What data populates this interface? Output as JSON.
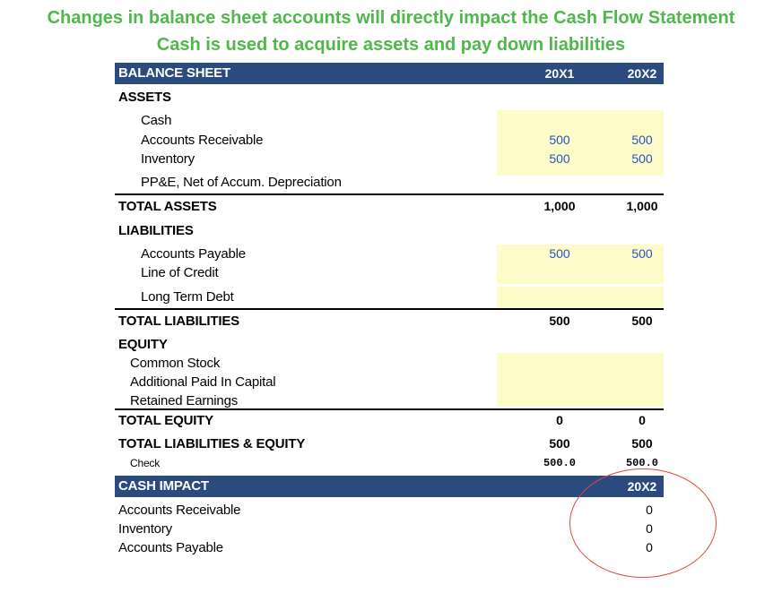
{
  "heading": {
    "line1": "Changes in balance sheet accounts will directly impact the Cash Flow Statement",
    "line2": "Cash is used to acquire assets and pay down liabilities"
  },
  "balance_sheet": {
    "title": "BALANCE SHEET",
    "col1": "20X1",
    "col2": "20X2",
    "assets_header": "ASSETS",
    "cash": {
      "label": "Cash",
      "v1": "",
      "v2": ""
    },
    "ar": {
      "label": "Accounts Receivable",
      "v1": "500",
      "v2": "500"
    },
    "inventory": {
      "label": "Inventory",
      "v1": "500",
      "v2": "500"
    },
    "ppe": {
      "label": "PP&E, Net of Accum. Depreciation",
      "v1": "",
      "v2": ""
    },
    "total_assets": {
      "label": "TOTAL ASSETS",
      "v1": "1,000",
      "v2": "1,000"
    },
    "liabilities_header": "LIABILITIES",
    "ap": {
      "label": "Accounts Payable",
      "v1": "500",
      "v2": "500"
    },
    "loc": {
      "label": "Line of Credit",
      "v1": "",
      "v2": ""
    },
    "ltd": {
      "label": "Long Term Debt",
      "v1": "",
      "v2": ""
    },
    "total_liabilities": {
      "label": "TOTAL LIABILITIES",
      "v1": "500",
      "v2": "500"
    },
    "equity_header": "EQUITY",
    "common_stock": {
      "label": "Common Stock"
    },
    "apic": {
      "label": "Additional Paid In Capital"
    },
    "retained": {
      "label": "Retained Earnings"
    },
    "total_equity": {
      "label": "TOTAL EQUITY",
      "v1": "0",
      "v2": "0"
    },
    "total_le": {
      "label": "TOTAL LIABILITIES & EQUITY",
      "v1": "500",
      "v2": "500"
    },
    "check": {
      "label": "Check",
      "v1": "500.0",
      "v2": "500.0"
    }
  },
  "cash_impact": {
    "title": "CASH IMPACT",
    "col": "20X2",
    "rows": [
      {
        "label": "Accounts Receivable",
        "value": "0"
      },
      {
        "label": "Inventory",
        "value": "0"
      },
      {
        "label": "Accounts Payable",
        "value": "0"
      }
    ]
  },
  "colors": {
    "heading_green": "#4fb84a",
    "header_bar": "#2b4b7e",
    "input_highlight": "#fdfcc8",
    "input_blue": "#2952c8",
    "annotation_red": "#e2463a"
  }
}
